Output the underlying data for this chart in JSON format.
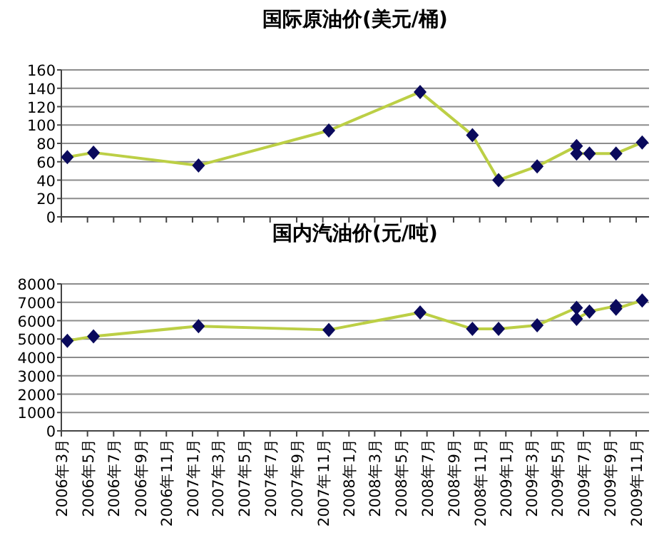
{
  "chart_data": [
    {
      "type": "line",
      "title": "国际原油价(美元/桶)",
      "x": [
        "2006-03-15",
        "2006-05-15",
        "2007-01-15",
        "2007-11-15",
        "2008-06-15",
        "2008-10-15",
        "2008-12-15",
        "2009-03-15",
        "2009-06-15",
        "2009-06-15",
        "2009-07-15",
        "2009-09-15",
        "2009-11-15"
      ],
      "series": [
        {
          "color": "#bccf45",
          "values": [
            65,
            70,
            56,
            94,
            136,
            89,
            40,
            55,
            77,
            69,
            69,
            69,
            81
          ]
        }
      ],
      "marker": "diamond",
      "grid": "y",
      "tick_labels": "y",
      "xlim": [
        "2006-03",
        "2009-12"
      ],
      "ylim": [
        0,
        160
      ],
      "yticks": [
        0,
        20,
        40,
        60,
        80,
        100,
        120,
        140,
        160
      ],
      "xticks": [
        {
          "value": "2006-03",
          "label": null
        },
        {
          "value": "2006-05",
          "label": null
        },
        {
          "value": "2006-07",
          "label": null
        },
        {
          "value": "2006-09",
          "label": null
        },
        {
          "value": "2006-11",
          "label": null
        },
        {
          "value": "2007-01",
          "label": null
        },
        {
          "value": "2007-03",
          "label": null
        },
        {
          "value": "2007-05",
          "label": null
        },
        {
          "value": "2007-07",
          "label": null
        },
        {
          "value": "2007-09",
          "label": null
        },
        {
          "value": "2007-11",
          "label": null
        },
        {
          "value": "2008-01",
          "label": null
        },
        {
          "value": "2008-03",
          "label": null
        },
        {
          "value": "2008-05",
          "label": null
        },
        {
          "value": "2008-07",
          "label": null
        },
        {
          "value": "2008-09",
          "label": null
        },
        {
          "value": "2008-11",
          "label": null
        },
        {
          "value": "2009-01",
          "label": null
        },
        {
          "value": "2009-03",
          "label": null
        },
        {
          "value": "2009-05",
          "label": null
        },
        {
          "value": "2009-07",
          "label": null
        },
        {
          "value": "2009-09",
          "label": null
        },
        {
          "value": "2009-11",
          "label": null
        }
      ]
    },
    {
      "type": "line",
      "title": "国内汽油价(元/吨)",
      "x": [
        "2006-03-15",
        "2006-05-15",
        "2007-01-15",
        "2007-11-15",
        "2008-06-15",
        "2008-10-15",
        "2008-12-15",
        "2009-03-15",
        "2009-06-15",
        "2009-06-15",
        "2009-07-15",
        "2009-09-15",
        "2009-09-15",
        "2009-11-15"
      ],
      "series": [
        {
          "color": "#bccf45",
          "values": [
            4900,
            5150,
            5700,
            5500,
            6450,
            5550,
            5550,
            5750,
            6700,
            6100,
            6500,
            6800,
            6650,
            7100
          ]
        }
      ],
      "marker": "diamond",
      "grid": "y",
      "xlim": [
        "2006-03",
        "2009-12"
      ],
      "ylim": [
        0,
        8000
      ],
      "yticks": [
        0,
        1000,
        2000,
        3000,
        4000,
        5000,
        6000,
        7000,
        8000
      ],
      "xticks": [
        {
          "value": "2006-03",
          "label": "2006年3月"
        },
        {
          "value": "2006-05",
          "label": "2006年5月"
        },
        {
          "value": "2006-07",
          "label": "2006年7月"
        },
        {
          "value": "2006-09",
          "label": "2006年9月"
        },
        {
          "value": "2006-11",
          "label": "2006年11月"
        },
        {
          "value": "2007-01",
          "label": "2007年1月"
        },
        {
          "value": "2007-03",
          "label": "2007年3月"
        },
        {
          "value": "2007-05",
          "label": "2007年5月"
        },
        {
          "value": "2007-07",
          "label": "2007年7月"
        },
        {
          "value": "2007-09",
          "label": "2007年9月"
        },
        {
          "value": "2007-11",
          "label": "2007年11月"
        },
        {
          "value": "2008-01",
          "label": "2008年1月"
        },
        {
          "value": "2008-03",
          "label": "2008年3月"
        },
        {
          "value": "2008-05",
          "label": "2008年5月"
        },
        {
          "value": "2008-07",
          "label": "2008年7月"
        },
        {
          "value": "2008-09",
          "label": "2008年9月"
        },
        {
          "value": "2008-11",
          "label": "2008年11月"
        },
        {
          "value": "2009-01",
          "label": "2009年1月"
        },
        {
          "value": "2009-03",
          "label": "2009年3月"
        },
        {
          "value": "2009-05",
          "label": "2009年5月"
        },
        {
          "value": "2009-07",
          "label": "2009年7月"
        },
        {
          "value": "2009-09",
          "label": "2009年9月"
        },
        {
          "value": "2009-11",
          "label": "2009年11月"
        }
      ]
    }
  ]
}
